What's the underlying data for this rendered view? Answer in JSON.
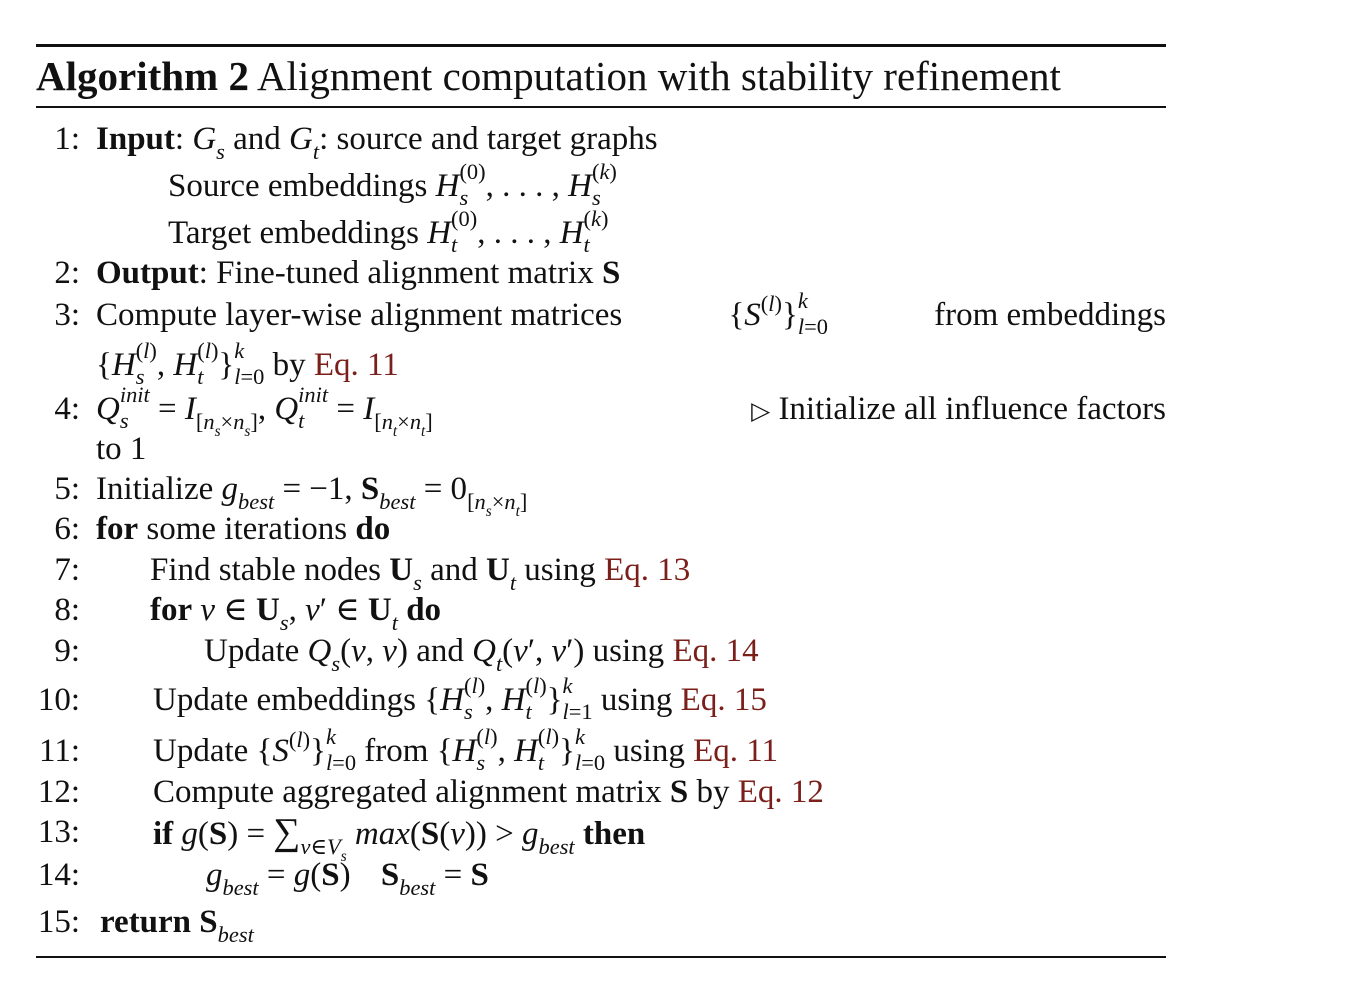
{
  "algorithm": {
    "label": "Algorithm 2",
    "title": "Alignment computation with stability refinement"
  },
  "lines": {
    "n1": "1:",
    "n2": "2:",
    "n3": "3:",
    "n4": "4:",
    "n5": "5:",
    "n6": "6:",
    "n7": "7:",
    "n8": "8:",
    "n9": "9:",
    "n10": "10:",
    "n11": "11:",
    "n12": "12:",
    "n13": "13:",
    "n14": "14:",
    "n15": "15:"
  },
  "text": {
    "input_kw": "Input",
    "input_rest": "source and target graphs",
    "source_emb": "Source embeddings",
    "target_emb": "Target embeddings",
    "output_kw": "Output",
    "output_rest": "Fine-tuned alignment matrix",
    "compute_layer": "Compute layer-wise alignment matrices",
    "from_embeddings": "from embeddings",
    "by": "by",
    "eq11": "Eq. 11",
    "eq12": "Eq. 12",
    "eq13": "Eq. 13",
    "eq14": "Eq. 14",
    "eq15": "Eq. 15",
    "init_comment": "Initialize all influence factors",
    "to_1": "to 1",
    "initialize": "Initialize",
    "for_kw": "for",
    "some_iterations": "some iterations",
    "do_kw": "do",
    "find_stable": "Find stable nodes",
    "and": "and",
    "using": "using",
    "update": "Update",
    "update_embeddings": "Update embeddings",
    "from": "from",
    "compute_agg": "Compute aggregated alignment matrix",
    "if_kw": "if",
    "then_kw": "then",
    "return_kw": "return"
  }
}
